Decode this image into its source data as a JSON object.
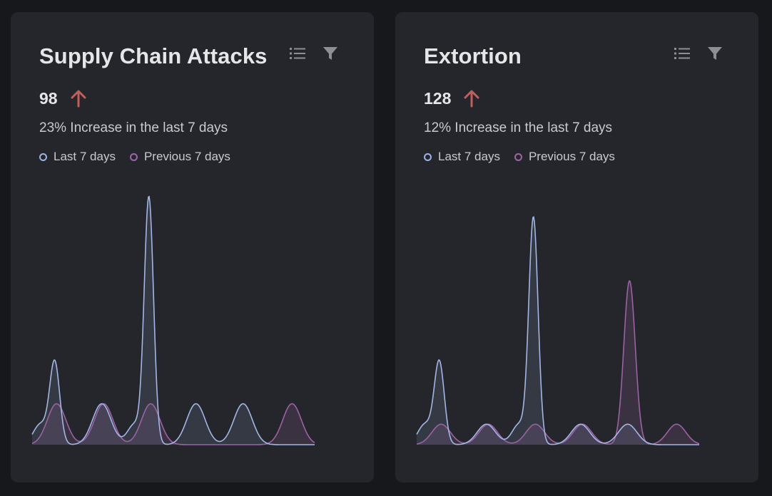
{
  "theme": {
    "background": "#17181c",
    "card": "#25262b",
    "last_color": "#a3b6e6",
    "prev_color": "#9b62a4",
    "trend_color": "#c0605d",
    "icon_color": "#8e8f94"
  },
  "cards": [
    {
      "title": "Supply Chain Attacks",
      "metric": "98",
      "trend_icon": "arrow-up-icon",
      "summary": "23% Increase in the last 7 days",
      "legend": {
        "last": "Last 7 days",
        "prev": "Previous 7 days"
      },
      "icons": [
        "list-icon",
        "filter-icon"
      ]
    },
    {
      "title": "Extortion",
      "metric": "128",
      "trend_icon": "arrow-up-icon",
      "summary": "12% Increase in the last 7 days",
      "legend": {
        "last": "Last 7 days",
        "prev": "Previous 7 days"
      },
      "icons": [
        "list-icon",
        "filter-icon"
      ]
    }
  ],
  "chart_data": [
    {
      "type": "area",
      "title": "Supply Chain Attacks",
      "xlabel": "",
      "ylabel": "",
      "ylim": [
        0,
        12
      ],
      "x": [
        1,
        2,
        3,
        4,
        5,
        6
      ],
      "grid": false,
      "legend_position": "top-left",
      "series": [
        {
          "name": "Last 7 days",
          "values": [
            4,
            2,
            12,
            2,
            2,
            0
          ],
          "secondary": [
            1,
            0,
            1,
            0,
            0,
            0
          ]
        },
        {
          "name": "Previous 7 days",
          "values": [
            2,
            2,
            2,
            0,
            0,
            2
          ]
        }
      ]
    },
    {
      "type": "area",
      "title": "Extortion",
      "xlabel": "",
      "ylabel": "",
      "ylim": [
        0,
        12
      ],
      "x": [
        1,
        2,
        3,
        4,
        5,
        6
      ],
      "grid": false,
      "legend_position": "top-left",
      "series": [
        {
          "name": "Last 7 days",
          "values": [
            4,
            1,
            11,
            1,
            1,
            0
          ],
          "secondary": [
            1,
            0,
            1,
            0,
            0,
            0
          ]
        },
        {
          "name": "Previous 7 days",
          "values": [
            1,
            1,
            1,
            1,
            8,
            1
          ]
        }
      ]
    }
  ]
}
